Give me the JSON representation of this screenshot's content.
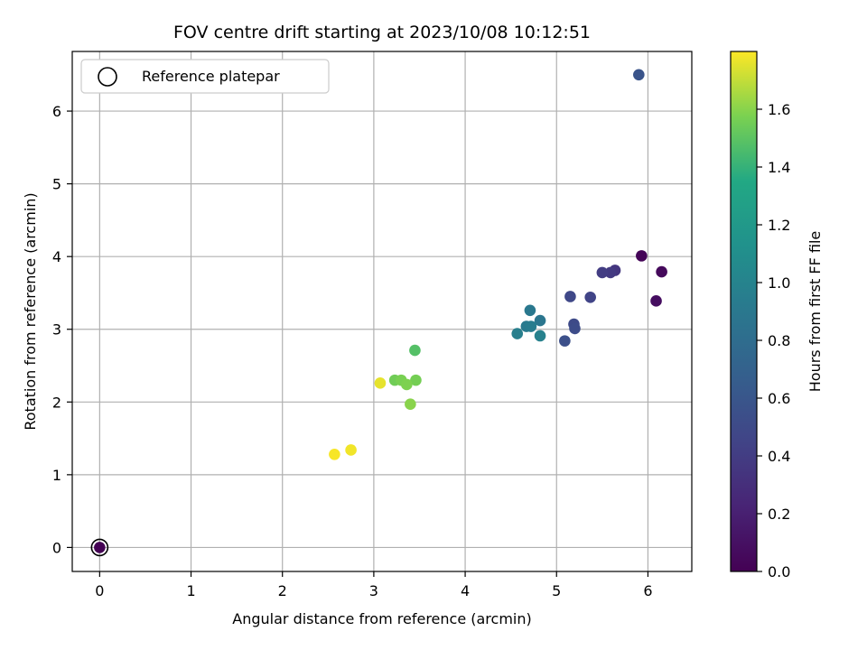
{
  "chart_data": {
    "type": "scatter",
    "title": "FOV centre drift starting at 2023/10/08 10:12:51",
    "xlabel": "Angular distance from reference (arcmin)",
    "ylabel": "Rotation from reference (arcmin)",
    "xlim": [
      -0.3,
      6.48
    ],
    "ylim": [
      -0.33,
      6.82
    ],
    "xticks": [
      0,
      1,
      2,
      3,
      4,
      5,
      6
    ],
    "yticks": [
      0,
      1,
      2,
      3,
      4,
      5,
      6
    ],
    "grid": true,
    "legend": {
      "position": "top-left",
      "entries": [
        "Reference platepar"
      ]
    },
    "reference_point": {
      "x": 0,
      "y": 0
    },
    "colorbar": {
      "label": "Hours from first FF file",
      "range": [
        0,
        1.8
      ],
      "ticks": [
        0.0,
        0.2,
        0.4,
        0.6,
        0.8,
        1.0,
        1.2,
        1.4,
        1.6
      ],
      "tick_labels": [
        "0.0",
        "0.2",
        "0.4",
        "0.6",
        "0.8",
        "1.0",
        "1.2",
        "1.4",
        "1.6"
      ],
      "colormap": "viridis"
    },
    "points": [
      {
        "x": 0.0,
        "y": 0.0,
        "c": 0.0
      },
      {
        "x": 5.93,
        "y": 4.01,
        "c": 0.02
      },
      {
        "x": 6.15,
        "y": 3.79,
        "c": 0.05
      },
      {
        "x": 6.09,
        "y": 3.39,
        "c": 0.08
      },
      {
        "x": 5.64,
        "y": 3.81,
        "c": 0.35
      },
      {
        "x": 5.59,
        "y": 3.78,
        "c": 0.38
      },
      {
        "x": 5.5,
        "y": 3.78,
        "c": 0.4
      },
      {
        "x": 5.37,
        "y": 3.44,
        "c": 0.45
      },
      {
        "x": 5.15,
        "y": 3.45,
        "c": 0.48
      },
      {
        "x": 5.19,
        "y": 3.07,
        "c": 0.5
      },
      {
        "x": 5.2,
        "y": 3.01,
        "c": 0.52
      },
      {
        "x": 5.09,
        "y": 2.84,
        "c": 0.55
      },
      {
        "x": 5.9,
        "y": 6.5,
        "c": 0.58
      },
      {
        "x": 4.82,
        "y": 3.12,
        "c": 0.88
      },
      {
        "x": 4.71,
        "y": 3.26,
        "c": 0.9
      },
      {
        "x": 4.67,
        "y": 3.04,
        "c": 0.92
      },
      {
        "x": 4.72,
        "y": 3.04,
        "c": 0.94
      },
      {
        "x": 4.57,
        "y": 2.94,
        "c": 0.96
      },
      {
        "x": 4.82,
        "y": 2.91,
        "c": 0.98
      },
      {
        "x": 3.45,
        "y": 2.71,
        "c": 1.48
      },
      {
        "x": 3.23,
        "y": 2.3,
        "c": 1.55
      },
      {
        "x": 3.3,
        "y": 2.3,
        "c": 1.57
      },
      {
        "x": 3.46,
        "y": 2.3,
        "c": 1.56
      },
      {
        "x": 3.36,
        "y": 2.24,
        "c": 1.58
      },
      {
        "x": 3.4,
        "y": 1.97,
        "c": 1.6
      },
      {
        "x": 3.07,
        "y": 2.26,
        "c": 1.76
      },
      {
        "x": 2.75,
        "y": 1.34,
        "c": 1.78
      },
      {
        "x": 2.57,
        "y": 1.28,
        "c": 1.79
      }
    ]
  }
}
